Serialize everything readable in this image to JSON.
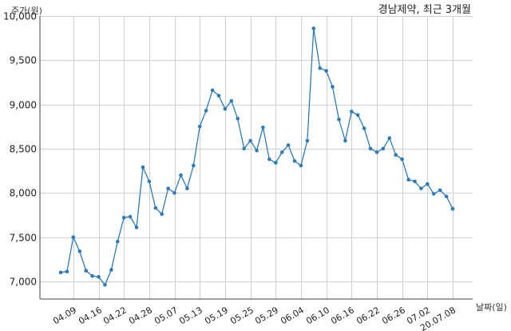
{
  "chart_data": {
    "type": "line",
    "title": "경남제약, 최근 3개월",
    "xlabel": "날짜(일)",
    "ylabel": "주가(원)",
    "ylim": [
      6800,
      10000
    ],
    "y_ticks": [
      7000,
      7500,
      8000,
      8500,
      9000,
      9500,
      10000
    ],
    "y_tick_labels": [
      "7,000",
      "7,500",
      "8,000",
      "8,500",
      "9,000",
      "9,500",
      "10,000"
    ],
    "x_tick_labels": [
      "04.09",
      "04.16",
      "04.22",
      "04.28",
      "05.07",
      "05.13",
      "05.19",
      "05.25",
      "05.29",
      "06.04",
      "06.10",
      "06.16",
      "06.22",
      "06.26",
      "07.02",
      "20.07.08"
    ],
    "x_tick_indices": [
      2,
      6,
      10,
      14,
      18,
      22,
      26,
      30,
      34,
      38,
      42,
      46,
      50,
      54,
      58,
      62
    ],
    "grid": true,
    "series": [
      {
        "color": "#2b7bb9",
        "values": [
          7100,
          7110,
          7500,
          7340,
          7120,
          7060,
          7050,
          6960,
          7130,
          7450,
          7720,
          7730,
          7610,
          8290,
          8130,
          7830,
          7760,
          8050,
          8000,
          8200,
          8050,
          8310,
          8750,
          8930,
          9160,
          9100,
          8950,
          9040,
          8840,
          8500,
          8590,
          8480,
          8740,
          8380,
          8340,
          8460,
          8540,
          8360,
          8310,
          8590,
          9860,
          9410,
          9380,
          9200,
          8830,
          8590,
          8920,
          8880,
          8730,
          8500,
          8460,
          8500,
          8620,
          8430,
          8380,
          8150,
          8130,
          8050,
          8100,
          7990,
          8030,
          7960,
          7820
        ]
      }
    ]
  }
}
